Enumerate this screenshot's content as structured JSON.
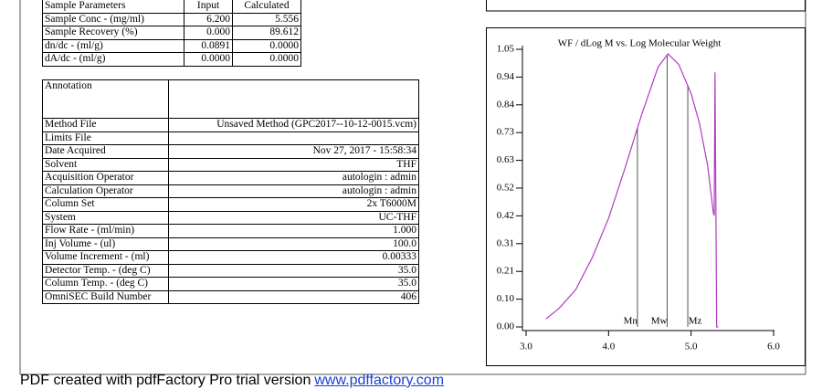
{
  "sample_parameters": {
    "header": [
      "Sample Parameters",
      "Input",
      "Calculated"
    ],
    "rows": [
      [
        "Sample Conc - (mg/ml)",
        "6.200",
        "5.556"
      ],
      [
        "Sample Recovery (%)",
        "0.000",
        "89.612"
      ],
      [
        "dn/dc - (ml/g)",
        "0.0891",
        "0.0000"
      ],
      [
        "dA/dc - (ml/g)",
        "0.0000",
        "0.0000"
      ]
    ]
  },
  "method": {
    "annotation_label": "Annotation",
    "rows": [
      [
        "Method File",
        "Unsaved Method (GPC2017--10-12-0015.vcm)"
      ],
      [
        "Limits File"
      ],
      [
        "Date Acquired",
        "Nov 27, 2017 - 15:58:34"
      ],
      [
        "Solvent",
        "THF"
      ],
      [
        "Acquisition Operator",
        "autologin : admin"
      ],
      [
        "Calculation Operator",
        "autologin : admin"
      ],
      [
        "Column Set",
        "2x T6000M"
      ],
      [
        "System",
        "UC-THF"
      ],
      [
        "Flow Rate - (ml/min)",
        "1.000"
      ],
      [
        "Inj Volume - (ul)",
        "100.0"
      ],
      [
        "Volume Increment - (ml)",
        "0.00333"
      ],
      [
        "Detector Temp. - (deg C)",
        "35.0"
      ],
      [
        "Column Temp. - (deg C)",
        "35.0"
      ],
      [
        "OmniSEC Build Number",
        "406"
      ]
    ]
  },
  "chart_data": {
    "type": "line",
    "title": "WF / dLog M vs. Log Molecular Weight",
    "x": [
      3.24,
      3.4,
      3.6,
      3.8,
      4.0,
      4.2,
      4.4,
      4.6,
      4.72,
      4.85,
      5.0,
      5.1,
      5.2,
      5.27,
      5.28,
      5.29,
      5.31,
      5.33
    ],
    "series": [
      {
        "name": "WF / dLog M",
        "color": "#b03cc0",
        "values": [
          0.03,
          0.07,
          0.14,
          0.26,
          0.41,
          0.6,
          0.8,
          0.98,
          1.03,
          0.99,
          0.88,
          0.77,
          0.61,
          0.43,
          0.42,
          0.96,
          0.0,
          0.0
        ]
      }
    ],
    "markers": [
      {
        "label": "Mn",
        "x": 4.35
      },
      {
        "label": "Mw",
        "x": 4.71
      },
      {
        "label": "Mz",
        "x": 4.96
      }
    ],
    "xlim": [
      3.0,
      6.0
    ],
    "xticks": [
      {
        "value": 3,
        "label": "3.0"
      },
      {
        "value": 4,
        "label": "4.0"
      },
      {
        "value": 5,
        "label": "5.0"
      },
      {
        "value": 6,
        "label": "6.0"
      }
    ],
    "ylim": [
      0,
      1.047
    ],
    "yticks": [
      {
        "value": 0,
        "label": "0.00"
      },
      {
        "value": 0.1047,
        "label": "0.10"
      },
      {
        "value": 0.2094,
        "label": "0.21"
      },
      {
        "value": 0.3141,
        "label": "0.31"
      },
      {
        "value": 0.4188,
        "label": "0.42"
      },
      {
        "value": 0.5235,
        "label": "0.52"
      },
      {
        "value": 0.6282,
        "label": "0.63"
      },
      {
        "value": 0.7329,
        "label": "0.73"
      },
      {
        "value": 0.8376,
        "label": "0.84"
      },
      {
        "value": 0.9423,
        "label": "0.94"
      },
      {
        "value": 1.047,
        "label": "1.05"
      }
    ]
  },
  "footer": {
    "text": "PDF created with pdfFactory Pro trial version",
    "link": "www.pdffactory.com"
  }
}
